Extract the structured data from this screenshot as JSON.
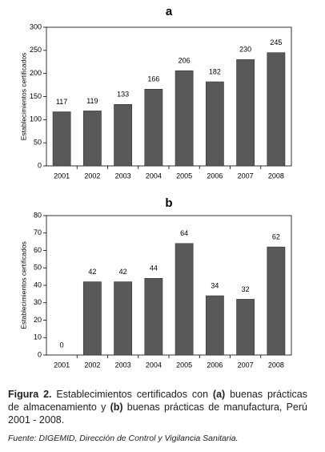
{
  "chart_data": [
    {
      "type": "bar",
      "title": "a",
      "y_label": "Establecimientos certificados",
      "categories": [
        "2001",
        "2002",
        "2003",
        "2004",
        "2005",
        "2006",
        "2007",
        "2008"
      ],
      "values": [
        117,
        119,
        133,
        166,
        206,
        182,
        230,
        245
      ],
      "color": "#595959",
      "ylim": [
        0,
        300
      ],
      "yticks": [
        0,
        50,
        100,
        150,
        200,
        250,
        300
      ]
    },
    {
      "type": "bar",
      "title": "b",
      "y_label": "Establecimientos certificados",
      "categories": [
        "2001",
        "2002",
        "2003",
        "2004",
        "2005",
        "2006",
        "2007",
        "2008"
      ],
      "values": [
        0,
        42,
        42,
        44,
        64,
        34,
        32,
        62
      ],
      "color": "#595959",
      "ylim": [
        0,
        80
      ],
      "yticks": [
        0,
        10,
        20,
        30,
        40,
        50,
        60,
        70,
        80
      ]
    }
  ],
  "caption": {
    "parts": [
      "Figura 2.",
      " Establecimientos certificados con ",
      "(a)",
      " buenas prácticas de almacenamiento y ",
      "(b)",
      " buenas prácticas de manufactura, Perú 2001 - 2008."
    ]
  },
  "source": "Fuente: DIGEMID, Dirección de Control y Vigilancia Sanitaria."
}
